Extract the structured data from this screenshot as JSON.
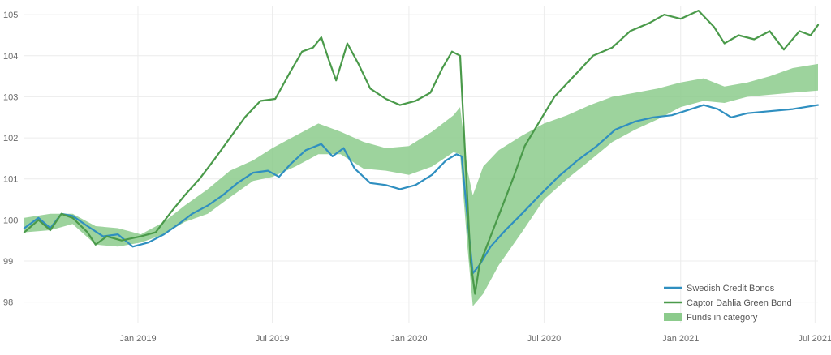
{
  "chart_data": {
    "type": "line",
    "title": "",
    "xlabel": "",
    "ylabel": "",
    "grid": true,
    "legend_position": "bottom-right",
    "ylim": [
      97.5,
      105.2
    ],
    "xlim": [
      "2018-08-01",
      "2021-07-05"
    ],
    "y_ticks": [
      98,
      99,
      100,
      101,
      102,
      103,
      104,
      105
    ],
    "x_ticks": [
      {
        "date": "2019-01-01",
        "label": "Jan 2019"
      },
      {
        "date": "2019-07-01",
        "label": "Jul 2019"
      },
      {
        "date": "2020-01-01",
        "label": "Jan 2020"
      },
      {
        "date": "2020-07-01",
        "label": "Jul 2020"
      },
      {
        "date": "2021-01-01",
        "label": "Jan 2021"
      },
      {
        "date": "2021-07-01",
        "label": "Jul 2021"
      }
    ],
    "series": [
      {
        "name": "Swedish Credit Bonds",
        "kind": "line",
        "color": "#2f8fc0",
        "points": [
          [
            "2018-08-01",
            99.8
          ],
          [
            "2018-08-20",
            100.05
          ],
          [
            "2018-09-05",
            99.8
          ],
          [
            "2018-09-20",
            100.15
          ],
          [
            "2018-10-05",
            100.1
          ],
          [
            "2018-10-25",
            99.85
          ],
          [
            "2018-11-15",
            99.6
          ],
          [
            "2018-12-05",
            99.65
          ],
          [
            "2018-12-25",
            99.35
          ],
          [
            "2019-01-15",
            99.45
          ],
          [
            "2019-02-05",
            99.65
          ],
          [
            "2019-02-25",
            99.9
          ],
          [
            "2019-03-15",
            100.15
          ],
          [
            "2019-04-05",
            100.35
          ],
          [
            "2019-04-25",
            100.6
          ],
          [
            "2019-05-15",
            100.9
          ],
          [
            "2019-06-05",
            101.15
          ],
          [
            "2019-06-25",
            101.2
          ],
          [
            "2019-07-10",
            101.05
          ],
          [
            "2019-07-25",
            101.35
          ],
          [
            "2019-08-15",
            101.7
          ],
          [
            "2019-09-05",
            101.85
          ],
          [
            "2019-09-20",
            101.55
          ],
          [
            "2019-10-05",
            101.75
          ],
          [
            "2019-10-20",
            101.25
          ],
          [
            "2019-11-10",
            100.9
          ],
          [
            "2019-12-01",
            100.85
          ],
          [
            "2019-12-20",
            100.75
          ],
          [
            "2020-01-10",
            100.85
          ],
          [
            "2020-02-01",
            101.1
          ],
          [
            "2020-02-20",
            101.45
          ],
          [
            "2020-03-05",
            101.6
          ],
          [
            "2020-03-12",
            101.55
          ],
          [
            "2020-03-20",
            100.0
          ],
          [
            "2020-03-27",
            98.7
          ],
          [
            "2020-04-05",
            98.9
          ],
          [
            "2020-04-20",
            99.35
          ],
          [
            "2020-05-10",
            99.75
          ],
          [
            "2020-06-01",
            100.15
          ],
          [
            "2020-06-25",
            100.6
          ],
          [
            "2020-07-20",
            101.05
          ],
          [
            "2020-08-15",
            101.45
          ],
          [
            "2020-09-10",
            101.8
          ],
          [
            "2020-10-05",
            102.2
          ],
          [
            "2020-11-01",
            102.4
          ],
          [
            "2020-11-25",
            102.5
          ],
          [
            "2020-12-20",
            102.55
          ],
          [
            "2021-01-15",
            102.7
          ],
          [
            "2021-02-01",
            102.8
          ],
          [
            "2021-02-20",
            102.7
          ],
          [
            "2021-03-10",
            102.5
          ],
          [
            "2021-04-01",
            102.6
          ],
          [
            "2021-05-01",
            102.65
          ],
          [
            "2021-06-01",
            102.7
          ],
          [
            "2021-07-05",
            102.8
          ]
        ]
      },
      {
        "name": "Captor Dahlia Green Bond",
        "kind": "line",
        "color": "#4a9a4a",
        "points": [
          [
            "2018-08-01",
            99.7
          ],
          [
            "2018-08-20",
            100.0
          ],
          [
            "2018-09-05",
            99.75
          ],
          [
            "2018-09-20",
            100.15
          ],
          [
            "2018-10-05",
            100.05
          ],
          [
            "2018-10-25",
            99.7
          ],
          [
            "2018-11-05",
            99.4
          ],
          [
            "2018-11-20",
            99.6
          ],
          [
            "2018-12-10",
            99.5
          ],
          [
            "2019-01-05",
            99.6
          ],
          [
            "2019-01-25",
            99.7
          ],
          [
            "2019-02-15",
            100.2
          ],
          [
            "2019-03-05",
            100.6
          ],
          [
            "2019-03-25",
            101.0
          ],
          [
            "2019-04-15",
            101.5
          ],
          [
            "2019-05-05",
            102.0
          ],
          [
            "2019-05-25",
            102.5
          ],
          [
            "2019-06-15",
            102.9
          ],
          [
            "2019-07-05",
            102.95
          ],
          [
            "2019-07-25",
            103.6
          ],
          [
            "2019-08-10",
            104.1
          ],
          [
            "2019-08-25",
            104.2
          ],
          [
            "2019-09-05",
            104.45
          ],
          [
            "2019-09-15",
            103.9
          ],
          [
            "2019-09-25",
            103.4
          ],
          [
            "2019-10-10",
            104.3
          ],
          [
            "2019-10-25",
            103.8
          ],
          [
            "2019-11-10",
            103.2
          ],
          [
            "2019-12-01",
            102.95
          ],
          [
            "2019-12-20",
            102.8
          ],
          [
            "2020-01-10",
            102.9
          ],
          [
            "2020-01-30",
            103.1
          ],
          [
            "2020-02-15",
            103.7
          ],
          [
            "2020-02-28",
            104.1
          ],
          [
            "2020-03-10",
            104.0
          ],
          [
            "2020-03-17",
            101.5
          ],
          [
            "2020-03-24",
            99.0
          ],
          [
            "2020-03-30",
            98.2
          ],
          [
            "2020-04-05",
            98.9
          ],
          [
            "2020-04-20",
            99.6
          ],
          [
            "2020-05-05",
            100.3
          ],
          [
            "2020-05-20",
            101.0
          ],
          [
            "2020-06-05",
            101.8
          ],
          [
            "2020-06-25",
            102.4
          ],
          [
            "2020-07-15",
            103.0
          ],
          [
            "2020-08-10",
            103.5
          ],
          [
            "2020-09-05",
            104.0
          ],
          [
            "2020-10-01",
            104.2
          ],
          [
            "2020-10-25",
            104.6
          ],
          [
            "2020-11-20",
            104.8
          ],
          [
            "2020-12-10",
            105.0
          ],
          [
            "2021-01-01",
            104.9
          ],
          [
            "2021-01-25",
            105.1
          ],
          [
            "2021-02-15",
            104.7
          ],
          [
            "2021-03-01",
            104.3
          ],
          [
            "2021-03-20",
            104.5
          ],
          [
            "2021-04-10",
            104.4
          ],
          [
            "2021-05-01",
            104.6
          ],
          [
            "2021-05-20",
            104.15
          ],
          [
            "2021-06-10",
            104.6
          ],
          [
            "2021-06-25",
            104.5
          ],
          [
            "2021-07-05",
            104.75
          ]
        ]
      }
    ],
    "band": {
      "name": "Funds in category",
      "color": "#8ccb8c",
      "points": [
        [
          "2018-08-01",
          99.7,
          100.05
        ],
        [
          "2018-09-05",
          99.75,
          100.15
        ],
        [
          "2018-10-05",
          99.9,
          100.15
        ],
        [
          "2018-11-05",
          99.4,
          99.85
        ],
        [
          "2018-12-05",
          99.35,
          99.8
        ],
        [
          "2019-01-05",
          99.45,
          99.65
        ],
        [
          "2019-02-05",
          99.65,
          99.95
        ],
        [
          "2019-03-05",
          99.95,
          100.35
        ],
        [
          "2019-04-05",
          100.15,
          100.75
        ],
        [
          "2019-05-05",
          100.55,
          101.2
        ],
        [
          "2019-06-05",
          100.95,
          101.45
        ],
        [
          "2019-07-01",
          101.05,
          101.75
        ],
        [
          "2019-08-01",
          101.3,
          102.05
        ],
        [
          "2019-09-01",
          101.6,
          102.35
        ],
        [
          "2019-10-01",
          101.6,
          102.15
        ],
        [
          "2019-11-01",
          101.25,
          101.9
        ],
        [
          "2019-12-01",
          101.2,
          101.75
        ],
        [
          "2020-01-01",
          101.1,
          101.8
        ],
        [
          "2020-02-01",
          101.3,
          102.15
        ],
        [
          "2020-03-01",
          101.65,
          102.55
        ],
        [
          "2020-03-10",
          101.6,
          102.75
        ],
        [
          "2020-03-20",
          99.3,
          101.2
        ],
        [
          "2020-03-27",
          97.9,
          100.6
        ],
        [
          "2020-04-10",
          98.2,
          101.3
        ],
        [
          "2020-05-01",
          98.9,
          101.7
        ],
        [
          "2020-06-01",
          99.7,
          102.05
        ],
        [
          "2020-07-01",
          100.5,
          102.35
        ],
        [
          "2020-08-01",
          101.0,
          102.55
        ],
        [
          "2020-09-01",
          101.45,
          102.8
        ],
        [
          "2020-10-01",
          101.9,
          103.0
        ],
        [
          "2020-11-01",
          102.2,
          103.1
        ],
        [
          "2020-12-01",
          102.45,
          103.2
        ],
        [
          "2021-01-01",
          102.75,
          103.35
        ],
        [
          "2021-02-01",
          102.9,
          103.45
        ],
        [
          "2021-03-01",
          102.85,
          103.25
        ],
        [
          "2021-04-01",
          103.0,
          103.35
        ],
        [
          "2021-05-01",
          103.05,
          103.5
        ],
        [
          "2021-06-01",
          103.1,
          103.7
        ],
        [
          "2021-07-05",
          103.15,
          103.8
        ]
      ]
    },
    "legend": [
      {
        "label": "Swedish Credit Bonds",
        "style": "line",
        "color": "#2f8fc0"
      },
      {
        "label": "Captor Dahlia Green Bond",
        "style": "line",
        "color": "#4a9a4a"
      },
      {
        "label": "Funds in category",
        "style": "band",
        "color": "#8ccb8c"
      }
    ]
  }
}
